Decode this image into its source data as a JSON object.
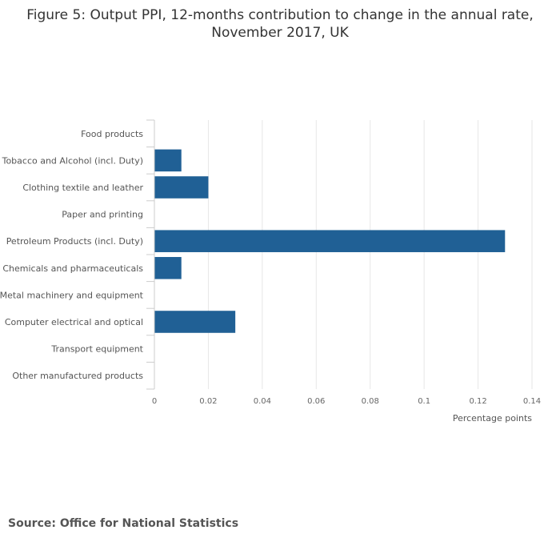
{
  "title_line1": "Figure 5: Output PPI, 12-months contribution to change in the annual rate,",
  "title_line2": "November 2017, UK",
  "source": "Source: Office for National Statistics",
  "colors": {
    "bar": "#206095",
    "grid": "#e6e6e6",
    "axis": "#cccccc"
  },
  "chart_data": {
    "type": "bar",
    "orientation": "horizontal",
    "title": "Figure 5: Output PPI, 12-months contribution to change in the annual rate, November 2017, UK",
    "xlabel": "Percentage points",
    "ylabel": "",
    "categories": [
      "Food products",
      "Tobacco and Alcohol (incl. Duty)",
      "Clothing textile and leather",
      "Paper and printing",
      "Petroleum Products (incl. Duty)",
      "Chemicals and pharmaceuticals",
      "Metal machinery and equipment",
      "Computer electrical and optical",
      "Transport equipment",
      "Other manufactured products"
    ],
    "values": [
      0,
      0.01,
      0.02,
      0,
      0.13,
      0.01,
      0,
      0.03,
      0,
      0
    ],
    "xlim": [
      0,
      0.14
    ],
    "xticks": [
      0,
      0.02,
      0.04,
      0.06,
      0.08,
      0.1,
      0.12,
      0.14
    ],
    "xtick_labels": [
      "0",
      "0.02",
      "0.04",
      "0.06",
      "0.08",
      "0.1",
      "0.12",
      "0.14"
    ],
    "grid": true
  }
}
